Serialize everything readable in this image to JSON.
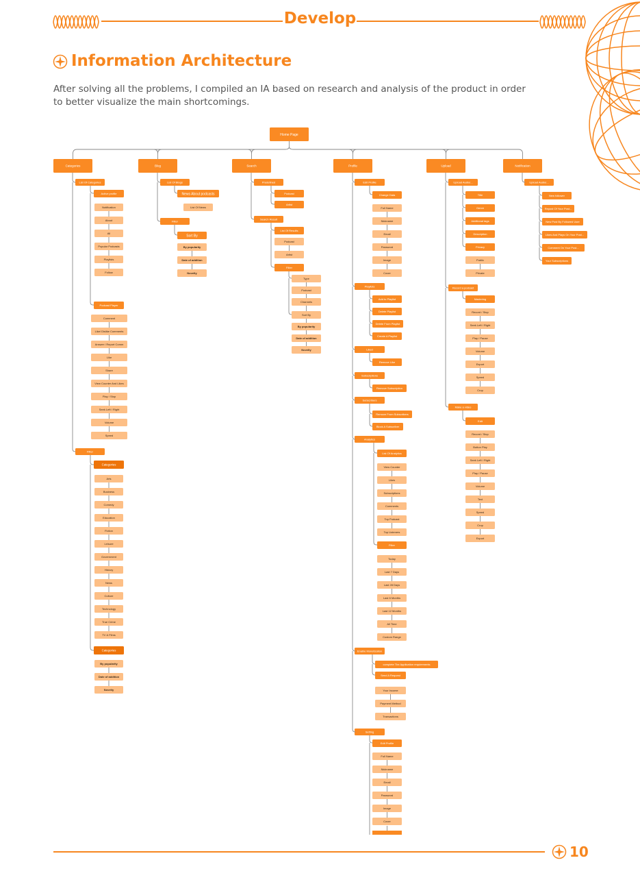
{
  "header": {
    "title": "Develop"
  },
  "section": {
    "title": "Information Architecture"
  },
  "intro": {
    "text": "After solving all the problems, I compiled an IA based on research and analysis of the product in order to better visualize the main shortcomings."
  },
  "footer": {
    "page_number": "10"
  },
  "colors": {
    "accent": "#F7861E",
    "box_main": "#FA8A23",
    "box_mid": "#FDA655",
    "box_light": "#FDBF86",
    "box_dark": "#EE7409",
    "line": "#8A8A8A"
  },
  "diagram": {
    "root": "Home Page",
    "branches": [
      {
        "label": "Categories",
        "children": [
          {
            "label": "List Of Categories",
            "children": [
              {
                "label": "Active profile",
                "items": [
                  "Notification",
                  "About",
                  "All",
                  "Popular Podcasts",
                  "Playlists",
                  "Follow"
                ]
              },
              {
                "label": "Podcast Player",
                "items": [
                  "Comment",
                  "Like/ Dislike Comments",
                  "Answer / Report Comm",
                  "Like",
                  "Share",
                  "View Counter And Likes",
                  "Play / Stop",
                  "Seek Left / Right",
                  "Volume",
                  "Speed"
                ]
              }
            ]
          },
          {
            "label": "Filter",
            "children": [
              {
                "label": "Categories",
                "items": [
                  "Arts",
                  "Business",
                  "Comedy",
                  "Education",
                  "Fiction",
                  "Leisure",
                  "Government",
                  "History",
                  "News",
                  "Culture",
                  "Technology",
                  "True Crime",
                  "TV & Films"
                ]
              },
              {
                "label": "Categories",
                "items": [
                  "By popularity",
                  "Date of addition",
                  "Novelty"
                ]
              }
            ]
          }
        ]
      },
      {
        "label": "Blog",
        "children": [
          {
            "label": "List Of Blogs",
            "children": [
              {
                "label": "News About podcasts",
                "items": [
                  "List Of News"
                ]
              }
            ]
          },
          {
            "label": "Filter",
            "children": [
              {
                "label": "Sort By",
                "items": [
                  "By popularity",
                  "Date of addition",
                  "Novelty"
                ]
              }
            ]
          }
        ]
      },
      {
        "label": "Search",
        "children": [
          {
            "label": "Predefined",
            "items": [
              "Podcast",
              "Artist"
            ]
          },
          {
            "label": "Search Result",
            "children": [
              {
                "label": "List Of Results",
                "items": [
                  "Podcast",
                  "Artist"
                ]
              },
              {
                "label": "Filter",
                "items": [
                  "Type",
                  "Podcast",
                  "Channels",
                  "Sort By",
                  "By popularity",
                  "Date of addition",
                  "Novelty"
                ]
              }
            ]
          }
        ]
      },
      {
        "label": "Profile",
        "children": [
          {
            "label": "Edit Profile",
            "items": [
              "Change Data",
              "Full Name",
              "Nickname",
              "Email",
              "Password",
              "Image",
              "Cover"
            ]
          },
          {
            "label": "Playlists",
            "items": [
              "Add to Playlist",
              "Delete Playlist",
              "Delete From Playlist",
              "Create A Playlist"
            ]
          },
          {
            "label": "Liked",
            "items": [
              "Remove Like"
            ]
          },
          {
            "label": "Subscriptions",
            "items": [
              "Remove Subscription"
            ]
          },
          {
            "label": "Subscribers",
            "items": [
              "Remove From Subscribers",
              "Block A Subscriber"
            ]
          },
          {
            "label": "Analytics",
            "items": [
              "List Of Analytics",
              "View Counter",
              "Likes",
              "Subscriptions",
              "Comments",
              "Top Podcast",
              "Top Listeners",
              "Filter",
              "Today",
              "Last 7 Days",
              "Last 28 Days",
              "Last 6 Months",
              "Last 12 Months",
              "All Time",
              "Custom Range"
            ]
          },
          {
            "label": "Enable Monetization",
            "items": [
              "complete The Application requirements",
              "Send A Request",
              "Your Income",
              "Payment Method",
              "Transactions"
            ]
          },
          {
            "label": "Setting",
            "items": [
              "Edit Profile",
              "Full Name",
              "Nickname",
              "Email",
              "Password",
              "Image",
              "Cover"
            ]
          }
        ]
      },
      {
        "label": "Upload",
        "children": [
          {
            "label": "Upload Audio/...",
            "items": [
              "Title",
              "Genre",
              "Additional tags",
              "Description",
              "Privacy",
              "Public",
              "Private"
            ]
          },
          {
            "label": "Record a podcast",
            "items": [
              "Mastering",
              "Record / Stop",
              "Seek Left / Right",
              "Play / Pause",
              "Volume",
              "Export",
              "Speed",
              "Crop"
            ]
          },
          {
            "label": "Make a video",
            "items": [
              "Edit",
              "Record / Stop",
              "Button Play",
              "Seek Left / Right",
              "Play / Pause",
              "Volume",
              "Text",
              "Speed",
              "Crop",
              "Export"
            ]
          }
        ]
      },
      {
        "label": "Notification",
        "children": [
          {
            "label": "Upload Audio/...",
            "items": [
              "New follower",
              "Repost Of Your Post...",
              "New Post By Followed User",
              "Likes And Plays On Your Post...",
              "Comment On Your Post...",
              "Your Subscriptions"
            ]
          }
        ]
      }
    ]
  }
}
